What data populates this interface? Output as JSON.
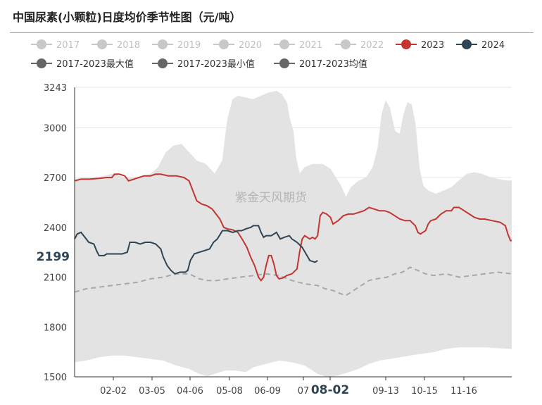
{
  "title": "中国尿素(小颗粒)日度均价季节性图（元/吨）",
  "watermark": "紫金天风期货",
  "colors": {
    "inactive": "#c8c8c8",
    "s2023": "#c23531",
    "s2024": "#2f4554",
    "band": "#e3e3e3",
    "avg": "#a8a8a8",
    "stat_marker": "#666666"
  },
  "chart_data": {
    "type": "line",
    "ylim": [
      1500,
      3243
    ],
    "yticks": [
      1500,
      1800,
      2100,
      2400,
      2700,
      3000,
      3243
    ],
    "xticks": [
      "02-02",
      "03-05",
      "04-06",
      "05-08",
      "06-09",
      "07",
      "08-02",
      "09-13",
      "10-15",
      "11-16"
    ],
    "cursor": {
      "x_label": "08-02",
      "y_label": "2199"
    },
    "legend": [
      {
        "name": "2017",
        "state": "off"
      },
      {
        "name": "2018",
        "state": "off"
      },
      {
        "name": "2019",
        "state": "off"
      },
      {
        "name": "2020",
        "state": "off"
      },
      {
        "name": "2021",
        "state": "off"
      },
      {
        "name": "2022",
        "state": "off"
      },
      {
        "name": "2023",
        "state": "on"
      },
      {
        "name": "2024",
        "state": "on"
      },
      {
        "name": "2017-2023最大值",
        "state": "stat"
      },
      {
        "name": "2017-2023最小值",
        "state": "stat"
      },
      {
        "name": "2017-2023均值",
        "state": "stat"
      }
    ],
    "series": [
      {
        "name": "2017-2023最大值",
        "points": [
          [
            1,
            2690
          ],
          [
            10,
            2700
          ],
          [
            20,
            2700
          ],
          [
            30,
            2720
          ],
          [
            40,
            2700
          ],
          [
            50,
            2700
          ],
          [
            60,
            2720
          ],
          [
            66,
            2760
          ],
          [
            72,
            2850
          ],
          [
            78,
            2890
          ],
          [
            84,
            2900
          ],
          [
            90,
            2850
          ],
          [
            96,
            2800
          ],
          [
            103,
            2780
          ],
          [
            110,
            2720
          ],
          [
            116,
            2800
          ],
          [
            120,
            3050
          ],
          [
            124,
            3170
          ],
          [
            128,
            3190
          ],
          [
            134,
            3180
          ],
          [
            140,
            3170
          ],
          [
            146,
            3190
          ],
          [
            152,
            3210
          ],
          [
            158,
            3220
          ],
          [
            162,
            3200
          ],
          [
            166,
            3150
          ],
          [
            168,
            3060
          ],
          [
            171,
            2980
          ],
          [
            173,
            2820
          ],
          [
            176,
            2720
          ],
          [
            180,
            2760
          ],
          [
            186,
            2780
          ],
          [
            194,
            2780
          ],
          [
            200,
            2750
          ],
          [
            204,
            2700
          ],
          [
            208,
            2650
          ],
          [
            212,
            2580
          ],
          [
            216,
            2640
          ],
          [
            222,
            2680
          ],
          [
            228,
            2700
          ],
          [
            233,
            2760
          ],
          [
            237,
            2880
          ],
          [
            240,
            3080
          ],
          [
            243,
            3160
          ],
          [
            246,
            3120
          ],
          [
            250,
            2980
          ],
          [
            254,
            2960
          ],
          [
            257,
            3080
          ],
          [
            260,
            3150
          ],
          [
            263,
            3140
          ],
          [
            266,
            3020
          ],
          [
            269,
            2760
          ],
          [
            272,
            2650
          ],
          [
            276,
            2620
          ],
          [
            282,
            2600
          ],
          [
            288,
            2620
          ],
          [
            294,
            2640
          ],
          [
            300,
            2680
          ],
          [
            306,
            2720
          ],
          [
            312,
            2730
          ],
          [
            318,
            2720
          ],
          [
            324,
            2700
          ],
          [
            330,
            2690
          ],
          [
            336,
            2680
          ],
          [
            341,
            2680
          ]
        ]
      },
      {
        "name": "2017-2023最小值",
        "points": [
          [
            1,
            1590
          ],
          [
            10,
            1600
          ],
          [
            20,
            1620
          ],
          [
            30,
            1630
          ],
          [
            40,
            1630
          ],
          [
            50,
            1620
          ],
          [
            60,
            1610
          ],
          [
            70,
            1600
          ],
          [
            80,
            1570
          ],
          [
            90,
            1550
          ],
          [
            98,
            1520
          ],
          [
            104,
            1505
          ],
          [
            110,
            1520
          ],
          [
            118,
            1540
          ],
          [
            126,
            1540
          ],
          [
            134,
            1530
          ],
          [
            140,
            1560
          ],
          [
            150,
            1580
          ],
          [
            160,
            1600
          ],
          [
            170,
            1590
          ],
          [
            180,
            1570
          ],
          [
            190,
            1520
          ],
          [
            198,
            1500
          ],
          [
            206,
            1510
          ],
          [
            214,
            1530
          ],
          [
            222,
            1550
          ],
          [
            230,
            1580
          ],
          [
            238,
            1600
          ],
          [
            246,
            1610
          ],
          [
            254,
            1620
          ],
          [
            262,
            1630
          ],
          [
            270,
            1640
          ],
          [
            280,
            1650
          ],
          [
            290,
            1670
          ],
          [
            300,
            1680
          ],
          [
            310,
            1680
          ],
          [
            320,
            1680
          ],
          [
            330,
            1675
          ],
          [
            341,
            1670
          ]
        ]
      },
      {
        "name": "2017-2023均值",
        "points": [
          [
            1,
            2010
          ],
          [
            10,
            2030
          ],
          [
            20,
            2040
          ],
          [
            30,
            2050
          ],
          [
            40,
            2060
          ],
          [
            50,
            2070
          ],
          [
            60,
            2090
          ],
          [
            70,
            2100
          ],
          [
            80,
            2120
          ],
          [
            90,
            2120
          ],
          [
            98,
            2090
          ],
          [
            104,
            2080
          ],
          [
            112,
            2080
          ],
          [
            120,
            2090
          ],
          [
            130,
            2100
          ],
          [
            140,
            2110
          ],
          [
            150,
            2120
          ],
          [
            160,
            2110
          ],
          [
            170,
            2080
          ],
          [
            180,
            2060
          ],
          [
            190,
            2050
          ],
          [
            196,
            2030
          ],
          [
            202,
            2020
          ],
          [
            208,
            2000
          ],
          [
            212,
            1990
          ],
          [
            218,
            2020
          ],
          [
            224,
            2050
          ],
          [
            230,
            2080
          ],
          [
            236,
            2090
          ],
          [
            244,
            2100
          ],
          [
            250,
            2120
          ],
          [
            256,
            2130
          ],
          [
            262,
            2160
          ],
          [
            268,
            2140
          ],
          [
            274,
            2120
          ],
          [
            280,
            2110
          ],
          [
            290,
            2120
          ],
          [
            300,
            2100
          ],
          [
            310,
            2110
          ],
          [
            320,
            2120
          ],
          [
            330,
            2130
          ],
          [
            341,
            2120
          ]
        ]
      },
      {
        "name": "2023",
        "points": [
          [
            1,
            2680
          ],
          [
            6,
            2690
          ],
          [
            12,
            2690
          ],
          [
            20,
            2695
          ],
          [
            26,
            2700
          ],
          [
            30,
            2700
          ],
          [
            32,
            2720
          ],
          [
            36,
            2720
          ],
          [
            40,
            2710
          ],
          [
            43,
            2680
          ],
          [
            47,
            2690
          ],
          [
            51,
            2700
          ],
          [
            55,
            2710
          ],
          [
            60,
            2710
          ],
          [
            64,
            2720
          ],
          [
            68,
            2720
          ],
          [
            74,
            2710
          ],
          [
            80,
            2710
          ],
          [
            86,
            2700
          ],
          [
            90,
            2680
          ],
          [
            93,
            2620
          ],
          [
            96,
            2560
          ],
          [
            100,
            2540
          ],
          [
            104,
            2530
          ],
          [
            108,
            2510
          ],
          [
            111,
            2480
          ],
          [
            114,
            2450
          ],
          [
            117,
            2400
          ],
          [
            120,
            2390
          ],
          [
            124,
            2385
          ],
          [
            128,
            2370
          ],
          [
            132,
            2320
          ],
          [
            135,
            2280
          ],
          [
            138,
            2220
          ],
          [
            141,
            2170
          ],
          [
            144,
            2100
          ],
          [
            146,
            2080
          ],
          [
            148,
            2100
          ],
          [
            150,
            2170
          ],
          [
            152,
            2230
          ],
          [
            154,
            2230
          ],
          [
            156,
            2180
          ],
          [
            158,
            2110
          ],
          [
            160,
            2090
          ],
          [
            163,
            2095
          ],
          [
            166,
            2110
          ],
          [
            170,
            2120
          ],
          [
            174,
            2150
          ],
          [
            176,
            2250
          ],
          [
            178,
            2330
          ],
          [
            180,
            2350
          ],
          [
            184,
            2330
          ],
          [
            186,
            2340
          ],
          [
            188,
            2330
          ],
          [
            190,
            2350
          ],
          [
            192,
            2470
          ],
          [
            194,
            2490
          ],
          [
            197,
            2480
          ],
          [
            200,
            2460
          ],
          [
            202,
            2420
          ],
          [
            206,
            2440
          ],
          [
            210,
            2470
          ],
          [
            214,
            2480
          ],
          [
            218,
            2480
          ],
          [
            222,
            2490
          ],
          [
            226,
            2500
          ],
          [
            230,
            2520
          ],
          [
            234,
            2510
          ],
          [
            238,
            2500
          ],
          [
            242,
            2500
          ],
          [
            246,
            2490
          ],
          [
            250,
            2470
          ],
          [
            254,
            2450
          ],
          [
            258,
            2440
          ],
          [
            262,
            2440
          ],
          [
            266,
            2410
          ],
          [
            268,
            2370
          ],
          [
            270,
            2360
          ],
          [
            274,
            2380
          ],
          [
            276,
            2420
          ],
          [
            278,
            2440
          ],
          [
            282,
            2450
          ],
          [
            286,
            2480
          ],
          [
            290,
            2500
          ],
          [
            294,
            2500
          ],
          [
            296,
            2520
          ],
          [
            300,
            2520
          ],
          [
            304,
            2500
          ],
          [
            308,
            2480
          ],
          [
            312,
            2460
          ],
          [
            316,
            2450
          ],
          [
            320,
            2450
          ],
          [
            326,
            2440
          ],
          [
            332,
            2430
          ],
          [
            336,
            2410
          ],
          [
            338,
            2360
          ],
          [
            340,
            2320
          ],
          [
            341,
            2320
          ]
        ]
      },
      {
        "name": "2024",
        "points": [
          [
            1,
            2330
          ],
          [
            3,
            2360
          ],
          [
            6,
            2370
          ],
          [
            9,
            2340
          ],
          [
            12,
            2310
          ],
          [
            16,
            2300
          ],
          [
            18,
            2260
          ],
          [
            20,
            2230
          ],
          [
            24,
            2230
          ],
          [
            26,
            2240
          ],
          [
            30,
            2240
          ],
          [
            34,
            2240
          ],
          [
            38,
            2240
          ],
          [
            42,
            2250
          ],
          [
            44,
            2310
          ],
          [
            48,
            2310
          ],
          [
            52,
            2300
          ],
          [
            56,
            2310
          ],
          [
            60,
            2310
          ],
          [
            64,
            2300
          ],
          [
            68,
            2270
          ],
          [
            70,
            2220
          ],
          [
            73,
            2170
          ],
          [
            76,
            2140
          ],
          [
            79,
            2120
          ],
          [
            83,
            2130
          ],
          [
            87,
            2130
          ],
          [
            89,
            2140
          ],
          [
            91,
            2200
          ],
          [
            94,
            2240
          ],
          [
            98,
            2250
          ],
          [
            102,
            2260
          ],
          [
            106,
            2270
          ],
          [
            109,
            2310
          ],
          [
            112,
            2330
          ],
          [
            116,
            2380
          ],
          [
            120,
            2380
          ],
          [
            124,
            2370
          ],
          [
            128,
            2380
          ],
          [
            131,
            2380
          ],
          [
            134,
            2390
          ],
          [
            138,
            2400
          ],
          [
            140,
            2410
          ],
          [
            144,
            2410
          ],
          [
            146,
            2370
          ],
          [
            148,
            2340
          ],
          [
            150,
            2350
          ],
          [
            154,
            2350
          ],
          [
            158,
            2370
          ],
          [
            161,
            2330
          ],
          [
            164,
            2340
          ],
          [
            168,
            2350
          ],
          [
            170,
            2330
          ],
          [
            174,
            2310
          ],
          [
            178,
            2280
          ],
          [
            181,
            2240
          ],
          [
            184,
            2200
          ],
          [
            188,
            2190
          ],
          [
            190,
            2200
          ]
        ]
      }
    ]
  }
}
